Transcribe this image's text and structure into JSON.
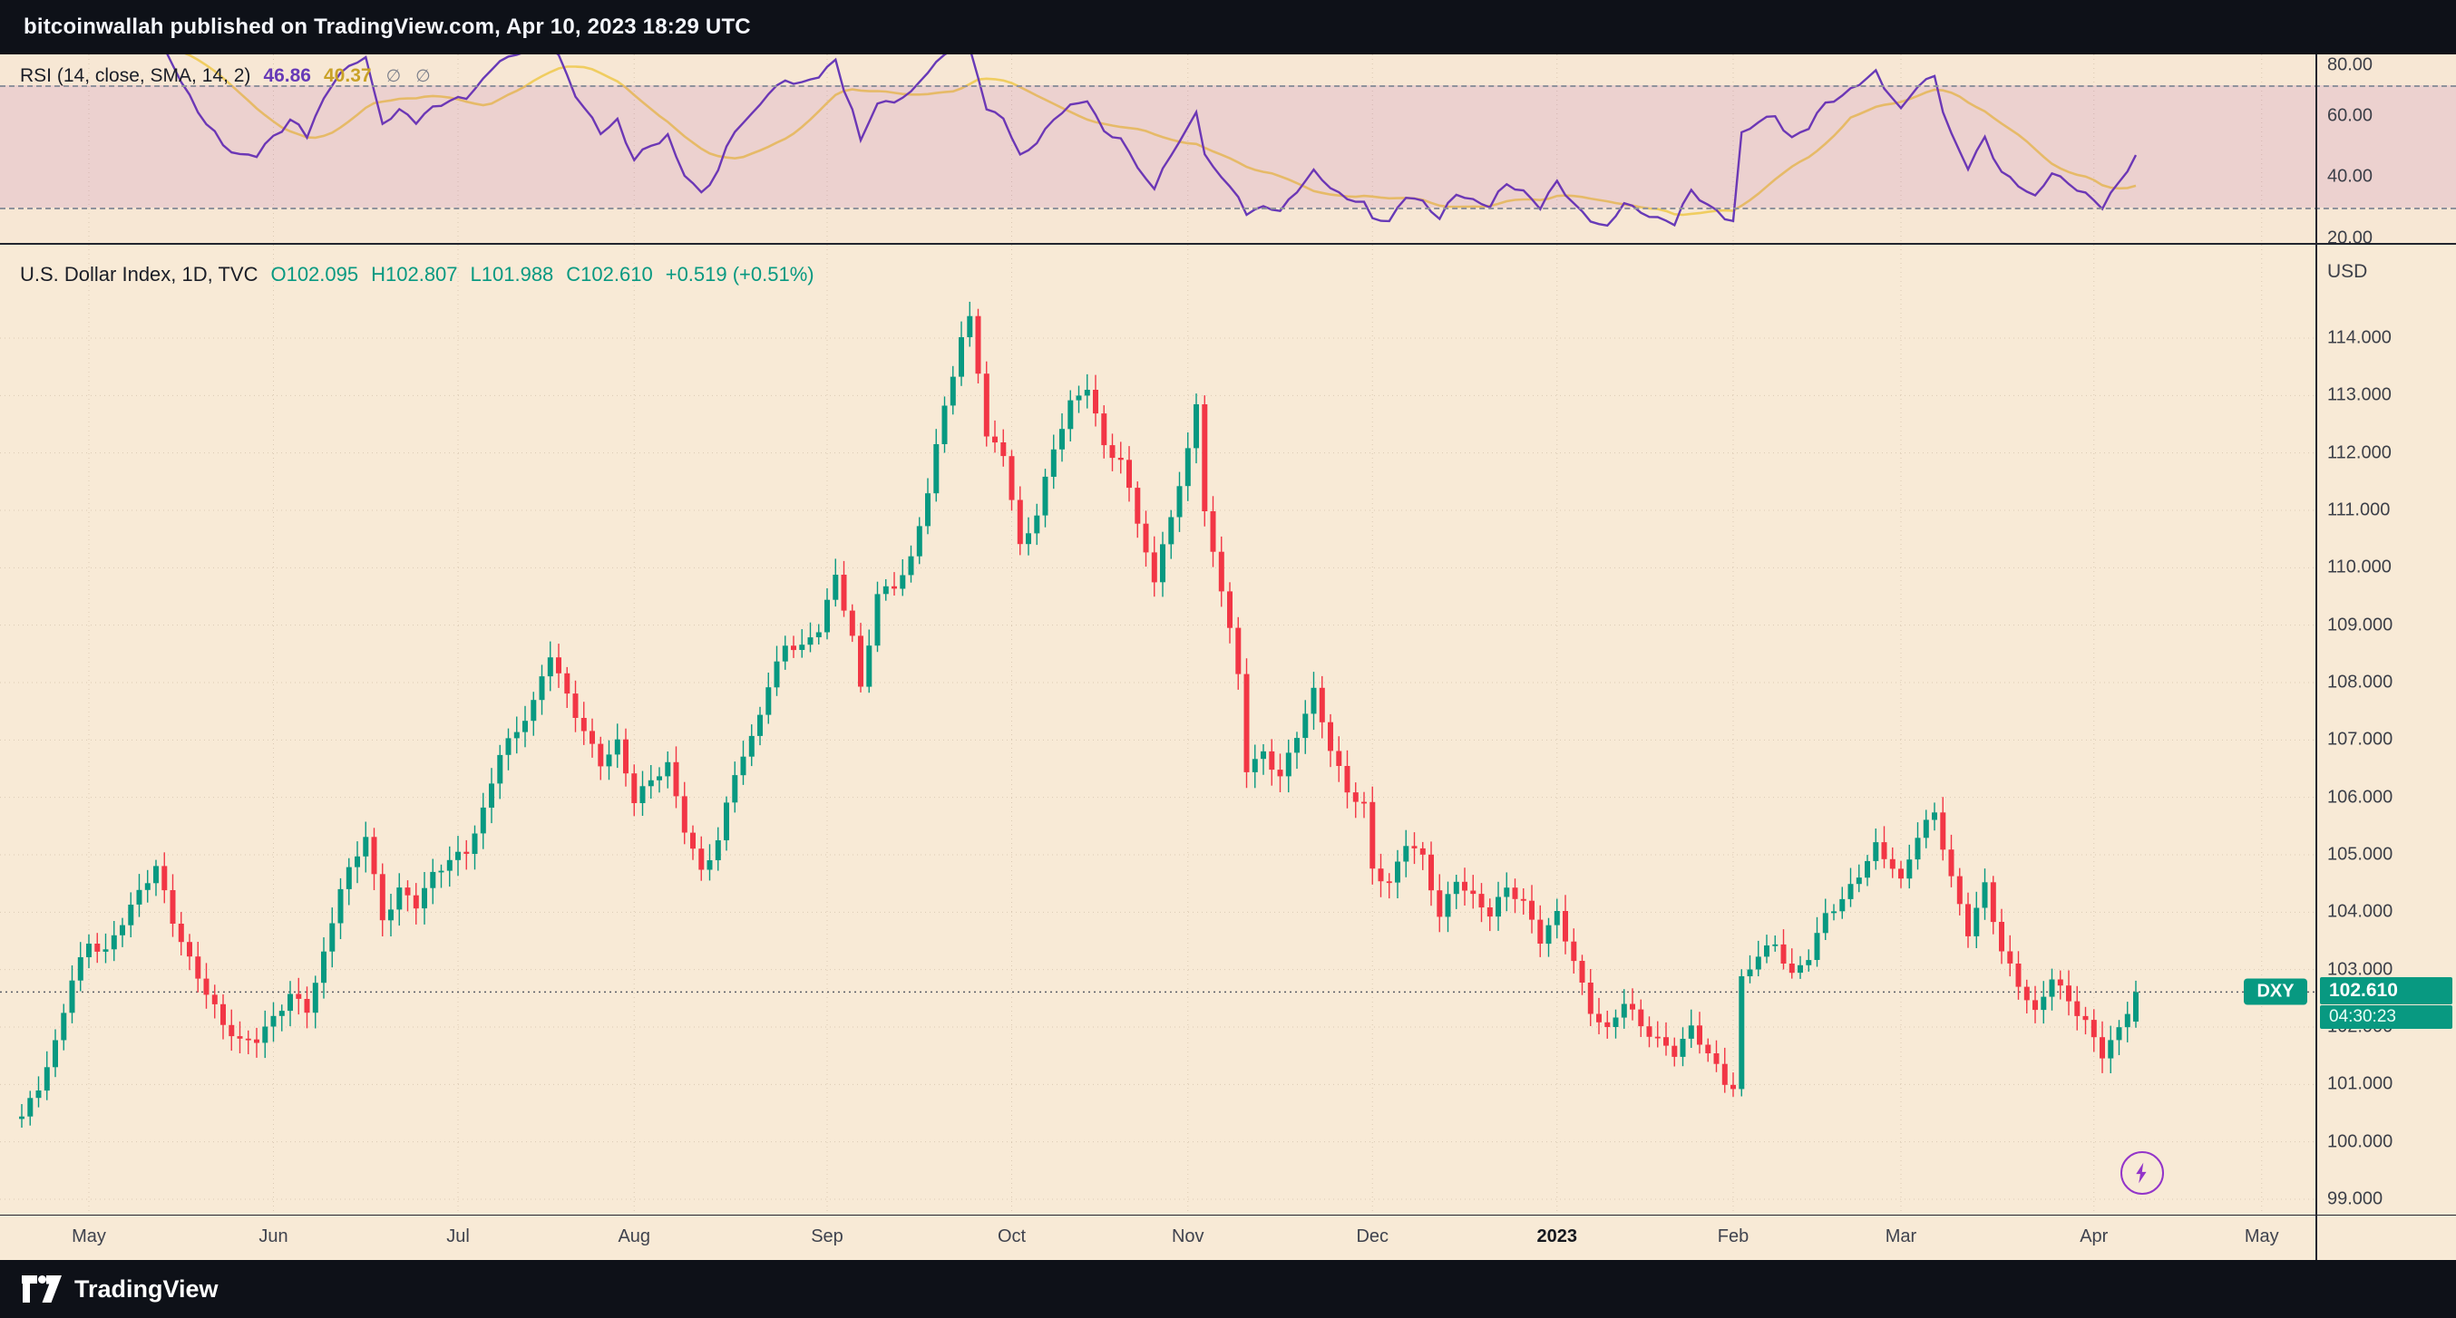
{
  "header": {
    "text": "bitcoinwallah published on TradingView.com, Apr 10, 2023 18:29 UTC"
  },
  "colors": {
    "up": "#089981",
    "down": "#f23645",
    "rsi": "#673ab7",
    "rsi_signal": "#f0cd60",
    "badge": "#089981",
    "flash": "#9334c9",
    "chart_bg": "#f8ead6",
    "band": "rgba(156,39,176,0.11)"
  },
  "rsi_panel": {
    "legend_title": "RSI (14, close, SMA, 14, 2)",
    "value_main": "46.86",
    "value_signal": "40.37",
    "icon_1": "∅",
    "icon_2": "∅",
    "axis_labels": [
      "80.00",
      "60.00",
      "40.00",
      "20.00"
    ],
    "band_upper": 70,
    "band_lower": 30
  },
  "main_panel": {
    "legend_title": "U.S. Dollar Index, 1D, TVC",
    "open": "O102.095",
    "high": "H102.807",
    "low": "L101.988",
    "close": "C102.610",
    "change": "+0.519 (+0.51%)",
    "axis_currency": "USD",
    "price_labels": [
      "114.000",
      "113.000",
      "112.000",
      "111.000",
      "110.000",
      "109.000",
      "108.000",
      "107.000",
      "106.000",
      "105.000",
      "104.000",
      "103.000",
      "102.000",
      "101.000",
      "100.000",
      "99.000"
    ],
    "last_price": {
      "symbol": "DXY",
      "price": "102.610",
      "countdown": "04:30:23",
      "value": 102.61
    }
  },
  "time_axis": {
    "labels": [
      {
        "text": "May",
        "day": 8
      },
      {
        "text": "Jun",
        "day": 30
      },
      {
        "text": "Jul",
        "day": 52
      },
      {
        "text": "Aug",
        "day": 73
      },
      {
        "text": "Sep",
        "day": 96
      },
      {
        "text": "Oct",
        "day": 118
      },
      {
        "text": "Nov",
        "day": 139
      },
      {
        "text": "Dec",
        "day": 161
      },
      {
        "text": "2023",
        "day": 183,
        "year": true
      },
      {
        "text": "Feb",
        "day": 204
      },
      {
        "text": "Mar",
        "day": 224
      },
      {
        "text": "Apr",
        "day": 247
      },
      {
        "text": "May",
        "day": 267
      }
    ]
  },
  "footer": {
    "brand": "TradingView"
  },
  "chart_data": [
    {
      "type": "line",
      "title": "RSI (14, close, SMA, 14, 2)",
      "ylim": [
        20,
        80
      ],
      "band": [
        30,
        70
      ],
      "series": [
        {
          "name": "RSI",
          "color": "#673ab7",
          "last": 46.86
        },
        {
          "name": "RSI-based MA",
          "color": "#f0cd60",
          "last": 40.37
        }
      ]
    },
    {
      "type": "candlestick",
      "title": "U.S. Dollar Index, 1D, TVC",
      "ylabel": "USD",
      "ylim": [
        99,
        115
      ],
      "last_ohlc": {
        "open": 102.095,
        "high": 102.807,
        "low": 101.988,
        "close": 102.61,
        "change": 0.519,
        "change_pct": 0.51
      },
      "anchors": [
        [
          0,
          100.4
        ],
        [
          2,
          100.9
        ],
        [
          4,
          101.7
        ],
        [
          6,
          102.9
        ],
        [
          8,
          103.5
        ],
        [
          10,
          103.3
        ],
        [
          12,
          103.8
        ],
        [
          14,
          104.3
        ],
        [
          16,
          104.8
        ],
        [
          18,
          103.9
        ],
        [
          20,
          103.2
        ],
        [
          22,
          102.6
        ],
        [
          24,
          102.0
        ],
        [
          26,
          101.7
        ],
        [
          28,
          101.8
        ],
        [
          30,
          102.2
        ],
        [
          32,
          102.6
        ],
        [
          34,
          102.3
        ],
        [
          36,
          103.2
        ],
        [
          38,
          104.4
        ],
        [
          40,
          105.0
        ],
        [
          41,
          105.4
        ],
        [
          43,
          103.9
        ],
        [
          45,
          104.4
        ],
        [
          47,
          104.1
        ],
        [
          49,
          104.6
        ],
        [
          51,
          104.9
        ],
        [
          53,
          105.1
        ],
        [
          55,
          105.8
        ],
        [
          57,
          106.8
        ],
        [
          59,
          107.1
        ],
        [
          61,
          107.6
        ],
        [
          63,
          108.5
        ],
        [
          65,
          107.8
        ],
        [
          67,
          107.2
        ],
        [
          69,
          106.6
        ],
        [
          71,
          106.9
        ],
        [
          73,
          105.9
        ],
        [
          75,
          106.3
        ],
        [
          77,
          106.6
        ],
        [
          79,
          105.5
        ],
        [
          81,
          104.7
        ],
        [
          83,
          105.2
        ],
        [
          85,
          106.4
        ],
        [
          87,
          107.0
        ],
        [
          89,
          108.0
        ],
        [
          91,
          108.7
        ],
        [
          93,
          108.6
        ],
        [
          95,
          108.9
        ],
        [
          97,
          109.8
        ],
        [
          99,
          108.8
        ],
        [
          100,
          107.9
        ],
        [
          102,
          109.6
        ],
        [
          104,
          109.7
        ],
        [
          106,
          110.1
        ],
        [
          108,
          111.3
        ],
        [
          110,
          112.8
        ],
        [
          112,
          114.0
        ],
        [
          113,
          114.4
        ],
        [
          114,
          113.5
        ],
        [
          115,
          112.3
        ],
        [
          117,
          112.0
        ],
        [
          119,
          110.3
        ],
        [
          121,
          110.9
        ],
        [
          123,
          112.1
        ],
        [
          125,
          112.9
        ],
        [
          127,
          113.2
        ],
        [
          129,
          112.1
        ],
        [
          131,
          111.8
        ],
        [
          133,
          110.8
        ],
        [
          135,
          109.7
        ],
        [
          136,
          110.5
        ],
        [
          138,
          111.4
        ],
        [
          140,
          112.9
        ],
        [
          141,
          110.9
        ],
        [
          143,
          109.6
        ],
        [
          145,
          108.1
        ],
        [
          146,
          106.5
        ],
        [
          148,
          106.8
        ],
        [
          150,
          106.4
        ],
        [
          152,
          107.1
        ],
        [
          154,
          107.8
        ],
        [
          156,
          106.8
        ],
        [
          158,
          106.1
        ],
        [
          160,
          105.9
        ],
        [
          161,
          104.8
        ],
        [
          163,
          104.5
        ],
        [
          165,
          105.2
        ],
        [
          167,
          104.9
        ],
        [
          169,
          103.9
        ],
        [
          171,
          104.6
        ],
        [
          173,
          104.3
        ],
        [
          175,
          104.0
        ],
        [
          177,
          104.4
        ],
        [
          179,
          104.1
        ],
        [
          181,
          103.5
        ],
        [
          183,
          104.0
        ],
        [
          185,
          103.2
        ],
        [
          187,
          102.3
        ],
        [
          189,
          101.9
        ],
        [
          191,
          102.4
        ],
        [
          193,
          102.0
        ],
        [
          195,
          101.8
        ],
        [
          197,
          101.6
        ],
        [
          199,
          102.0
        ],
        [
          201,
          101.5
        ],
        [
          203,
          101.0
        ],
        [
          204,
          100.9
        ],
        [
          205,
          102.8
        ],
        [
          207,
          103.3
        ],
        [
          209,
          103.5
        ],
        [
          211,
          102.9
        ],
        [
          213,
          103.2
        ],
        [
          215,
          103.9
        ],
        [
          217,
          104.2
        ],
        [
          219,
          104.7
        ],
        [
          221,
          105.2
        ],
        [
          223,
          104.8
        ],
        [
          224,
          104.5
        ],
        [
          226,
          105.3
        ],
        [
          228,
          105.7
        ],
        [
          230,
          104.6
        ],
        [
          232,
          103.7
        ],
        [
          234,
          104.5
        ],
        [
          236,
          103.3
        ],
        [
          238,
          102.7
        ],
        [
          240,
          102.2
        ],
        [
          242,
          102.9
        ],
        [
          244,
          102.5
        ],
        [
          246,
          102.1
        ],
        [
          248,
          101.5
        ],
        [
          250,
          101.9
        ],
        [
          252,
          102.6
        ]
      ]
    }
  ]
}
